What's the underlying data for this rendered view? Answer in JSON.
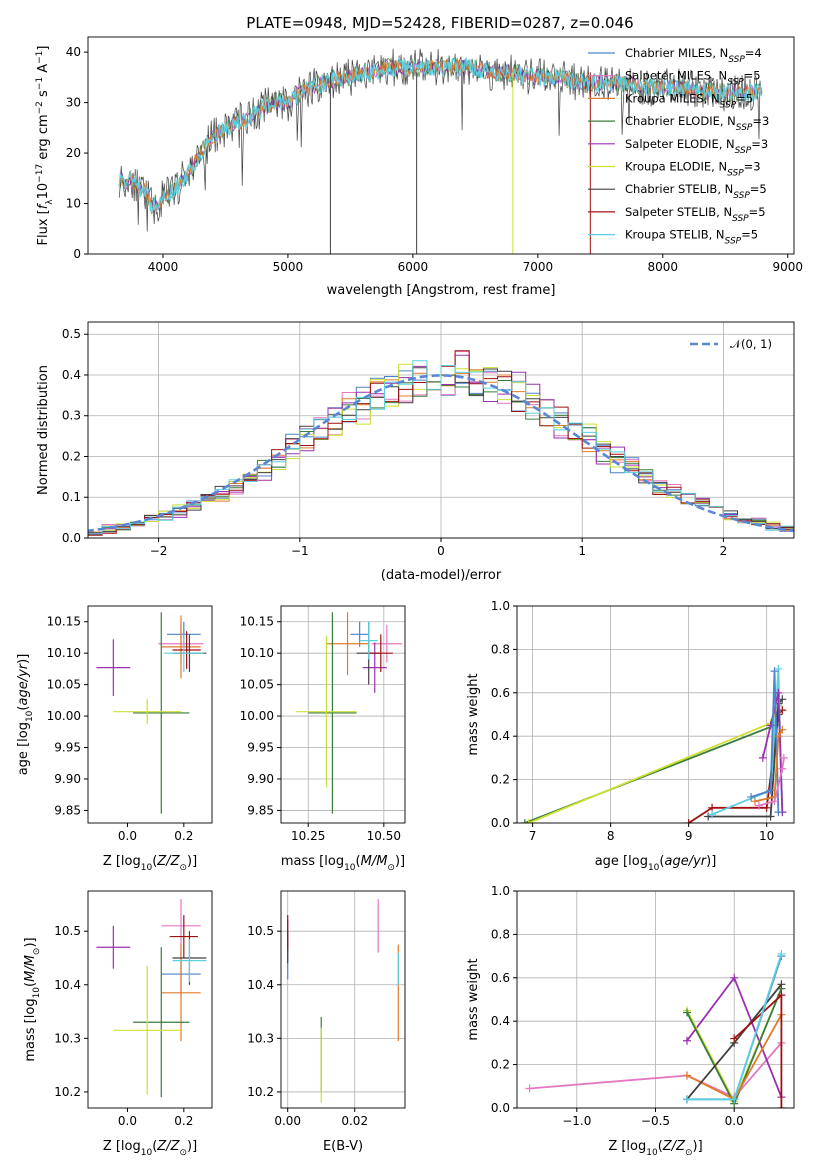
{
  "figure": {
    "title": "PLATE=0948, MJD=52428, FIBERID=0287, z=0.046"
  },
  "colors": {
    "Chabrier MILES": "#4c83c9",
    "Salpeter MILES": "#e377c2",
    "Kroupa MILES": "#e07b2a",
    "Chabrier ELODIE": "#3b7d3b",
    "Salpeter ELODIE": "#9b30b0",
    "Kroupa ELODIE": "#cde033",
    "Chabrier STELIB": "#404040",
    "Salpeter STELIB": "#a01010",
    "Kroupa STELIB": "#5ad0e0"
  },
  "chart_data": [
    {
      "id": "spectrum",
      "type": "line",
      "title": "PLATE=0948, MJD=52428, FIBERID=0287, z=0.046",
      "xlabel": "wavelength [Angstrom, rest frame]",
      "ylabel": "Flux [f_λ10^-17 erg cm^-2 s^-1 A^-1]",
      "xlim": [
        3400,
        9050
      ],
      "ylim": [
        0,
        43
      ],
      "xticks": [
        4000,
        5000,
        6000,
        7000,
        8000,
        9000
      ],
      "yticks": [
        0,
        10,
        20,
        30,
        40
      ],
      "legend": [
        "Chabrier MILES, N_SSP=4",
        "Salpeter MILES, N_SSP=5",
        "Kroupa MILES, N_SSP=5",
        "Chabrier ELODIE, N_SSP=3",
        "Salpeter ELODIE, N_SSP=3",
        "Kroupa ELODIE, N_SSP=3",
        "Chabrier STELIB, N_SSP=5",
        "Salpeter STELIB, N_SSP=5",
        "Kroupa STELIB, N_SSP=5"
      ],
      "legend_placement": "right",
      "grid": false,
      "data_x": [
        3650,
        3700,
        3750,
        3800,
        3850,
        3900,
        3950,
        4000,
        4100,
        4200,
        4300,
        4400,
        4500,
        4600,
        4700,
        4800,
        4900,
        5000,
        5100,
        5200,
        5300,
        5400,
        5500,
        5600,
        5700,
        5800,
        5900,
        6000,
        6100,
        6200,
        6300,
        6400,
        6500,
        6600,
        6700,
        6800,
        6900,
        7000,
        7100,
        7200,
        7300,
        7400,
        7500,
        7600,
        7700,
        7800,
        7900,
        8000,
        8100,
        8200,
        8300,
        8400,
        8500,
        8600,
        8700,
        8800
      ],
      "data_y": [
        15,
        14,
        15,
        13,
        13,
        10,
        9,
        11,
        13,
        16,
        20,
        23,
        25,
        26,
        27,
        29,
        30,
        30,
        32,
        33,
        34,
        35,
        35,
        36,
        36,
        37,
        37,
        37,
        37,
        37,
        37,
        37,
        37,
        36,
        36,
        36,
        35,
        35,
        35,
        35,
        34,
        34,
        34,
        34,
        34,
        33,
        33,
        33,
        33,
        33,
        32,
        32,
        32,
        32,
        32,
        32
      ]
    },
    {
      "id": "residuals",
      "type": "line",
      "xlabel": "(data-model)/error",
      "ylabel": "Normed distribution",
      "xlim": [
        -2.5,
        2.5
      ],
      "ylim": [
        0,
        0.53
      ],
      "xticks": [
        -2,
        -1,
        0,
        1,
        2
      ],
      "yticks": [
        0.0,
        0.1,
        0.2,
        0.3,
        0.4,
        0.5
      ],
      "grid": true,
      "legend": [
        "𝒩(0, 1)"
      ],
      "legend_placement": "top-right",
      "curve": "normal(0,1)"
    },
    {
      "id": "age-vs-Z",
      "type": "scatter",
      "xlabel": "Z [log10(Z/Z⊙)]",
      "ylabel": "age  [log10(age/yr)]",
      "xlim": [
        -0.14,
        0.3
      ],
      "ylim": [
        9.83,
        10.175
      ],
      "xticks": [
        0.0,
        0.2
      ],
      "yticks": [
        9.85,
        9.9,
        9.95,
        10.0,
        10.05,
        10.1,
        10.15
      ],
      "grid": false,
      "points": [
        {
          "series": "Chabrier MILES",
          "x": 0.2,
          "y": 10.13,
          "xerr": 0.06,
          "yerr": 0.02
        },
        {
          "series": "Salpeter MILES",
          "x": 0.19,
          "y": 10.115,
          "xerr": 0.08,
          "yerr": 0.03
        },
        {
          "series": "Kroupa MILES",
          "x": 0.19,
          "y": 10.11,
          "xerr": 0.07,
          "yerr": 0.05
        },
        {
          "series": "Chabrier ELODIE",
          "x": 0.12,
          "y": 10.005,
          "xerr": 0.1,
          "yerr": 0.16
        },
        {
          "series": "Salpeter ELODIE",
          "x": -0.05,
          "y": 10.077,
          "xerr": 0.06,
          "yerr": 0.045
        },
        {
          "series": "Kroupa ELODIE",
          "x": 0.07,
          "y": 10.007,
          "xerr": 0.12,
          "yerr": 0.02
        },
        {
          "series": "Chabrier STELIB",
          "x": 0.22,
          "y": 10.1,
          "xerr": 0.06,
          "yerr": 0.03
        },
        {
          "series": "Salpeter STELIB",
          "x": 0.21,
          "y": 10.105,
          "xerr": 0.05,
          "yerr": 0.03
        },
        {
          "series": "Kroupa STELIB",
          "x": 0.2,
          "y": 10.1,
          "xerr": 0.07,
          "yerr": 0.03
        }
      ]
    },
    {
      "id": "age-vs-mass",
      "type": "scatter",
      "xlabel": "mass [log10(M/M⊙)]",
      "ylabel": "",
      "xlim": [
        10.16,
        10.57
      ],
      "ylim": [
        9.83,
        10.175
      ],
      "xticks": [
        10.25,
        10.5
      ],
      "yticks": [
        9.85,
        9.9,
        9.95,
        10.0,
        10.05,
        10.1,
        10.15
      ],
      "grid": true,
      "points": [
        {
          "series": "Chabrier MILES",
          "x": 10.42,
          "y": 10.13,
          "xerr": 0.03,
          "yerr": 0.02
        },
        {
          "series": "Salpeter MILES",
          "x": 10.51,
          "y": 10.115,
          "xerr": 0.05,
          "yerr": 0.03
        },
        {
          "series": "Kroupa MILES",
          "x": 10.38,
          "y": 10.115,
          "xerr": 0.07,
          "yerr": 0.05
        },
        {
          "series": "Chabrier ELODIE",
          "x": 10.33,
          "y": 10.005,
          "xerr": 0.08,
          "yerr": 0.16
        },
        {
          "series": "Salpeter ELODIE",
          "x": 10.47,
          "y": 10.077,
          "xerr": 0.04,
          "yerr": 0.04
        },
        {
          "series": "Kroupa ELODIE",
          "x": 10.31,
          "y": 10.007,
          "xerr": 0.1,
          "yerr": 0.12
        },
        {
          "series": "Chabrier STELIB",
          "x": 10.45,
          "y": 10.1,
          "xerr": 0.04,
          "yerr": 0.05
        },
        {
          "series": "Salpeter STELIB",
          "x": 10.49,
          "y": 10.1,
          "xerr": 0.04,
          "yerr": 0.03
        },
        {
          "series": "Kroupa STELIB",
          "x": 10.45,
          "y": 10.12,
          "xerr": 0.03,
          "yerr": 0.03
        }
      ]
    },
    {
      "id": "massweight-vs-age",
      "type": "line",
      "xlabel": "age  [log10(age/yr)]",
      "ylabel": "mass weight",
      "xlim": [
        6.8,
        10.35
      ],
      "ylim": [
        0,
        1
      ],
      "xticks": [
        7,
        8,
        9,
        10
      ],
      "yticks": [
        0.0,
        0.2,
        0.4,
        0.6,
        0.8,
        1.0
      ],
      "grid": true,
      "series": [
        {
          "name": "Chabrier ELODIE",
          "x": [
            6.9,
            10.1,
            10.15
          ],
          "y": [
            0.0,
            0.45,
            0.55
          ]
        },
        {
          "name": "Kroupa ELODIE",
          "x": [
            6.95,
            10.05,
            10.15
          ],
          "y": [
            0.0,
            0.46,
            0.54
          ]
        },
        {
          "name": "Salpeter STELIB",
          "x": [
            9.0,
            9.3,
            10.0,
            10.15,
            10.2
          ],
          "y": [
            0.0,
            0.07,
            0.07,
            0.5,
            0.52
          ]
        },
        {
          "name": "Chabrier STELIB",
          "x": [
            9.25,
            10.05,
            10.15,
            10.2
          ],
          "y": [
            0.03,
            0.03,
            0.55,
            0.57
          ]
        },
        {
          "name": "Kroupa STELIB",
          "x": [
            9.3,
            10.05,
            10.15,
            10.2
          ],
          "y": [
            0.04,
            0.15,
            0.71,
            0.05
          ]
        },
        {
          "name": "Salpeter ELODIE",
          "x": [
            9.95,
            10.05,
            10.15,
            10.2
          ],
          "y": [
            0.3,
            0.45,
            0.6,
            0.05
          ]
        },
        {
          "name": "Chabrier MILES",
          "x": [
            9.8,
            10.05,
            10.1,
            10.15
          ],
          "y": [
            0.12,
            0.15,
            0.7,
            0.05
          ]
        },
        {
          "name": "Kroupa MILES",
          "x": [
            9.85,
            10.1,
            10.15,
            10.2
          ],
          "y": [
            0.1,
            0.12,
            0.4,
            0.43
          ]
        },
        {
          "name": "Salpeter MILES",
          "x": [
            9.9,
            10.1,
            10.2,
            10.22
          ],
          "y": [
            0.08,
            0.1,
            0.25,
            0.3
          ]
        }
      ]
    },
    {
      "id": "mass-vs-Z",
      "type": "scatter",
      "xlabel": "Z [log10(Z/Z⊙)]",
      "ylabel": "mass [log10(M/M⊙)]",
      "xlim": [
        -0.14,
        0.3
      ],
      "ylim": [
        10.17,
        10.575
      ],
      "xticks": [
        0.0,
        0.2
      ],
      "yticks": [
        10.2,
        10.3,
        10.4,
        10.5
      ],
      "grid": false,
      "points": [
        {
          "series": "Chabrier MILES",
          "x": 0.19,
          "y": 10.42,
          "xerr": 0.07,
          "yerr": 0.04
        },
        {
          "series": "Salpeter MILES",
          "x": 0.19,
          "y": 10.51,
          "xerr": 0.07,
          "yerr": 0.05
        },
        {
          "series": "Kroupa MILES",
          "x": 0.19,
          "y": 10.385,
          "xerr": 0.07,
          "yerr": 0.09
        },
        {
          "series": "Chabrier ELODIE",
          "x": 0.12,
          "y": 10.33,
          "xerr": 0.1,
          "yerr": 0.14
        },
        {
          "series": "Salpeter ELODIE",
          "x": -0.05,
          "y": 10.47,
          "xerr": 0.06,
          "yerr": 0.04
        },
        {
          "series": "Kroupa ELODIE",
          "x": 0.07,
          "y": 10.315,
          "xerr": 0.12,
          "yerr": 0.12
        },
        {
          "series": "Chabrier STELIB",
          "x": 0.22,
          "y": 10.45,
          "xerr": 0.06,
          "yerr": 0.05
        },
        {
          "series": "Salpeter STELIB",
          "x": 0.2,
          "y": 10.49,
          "xerr": 0.05,
          "yerr": 0.04
        },
        {
          "series": "Kroupa STELIB",
          "x": 0.22,
          "y": 10.445,
          "xerr": 0.06,
          "yerr": 0.04
        }
      ]
    },
    {
      "id": "mass-vs-EBV",
      "type": "scatter",
      "xlabel": "E(B-V)",
      "ylabel": "",
      "xlim": [
        -0.002,
        0.035
      ],
      "ylim": [
        10.17,
        10.575
      ],
      "xticks": [
        0.0,
        0.02
      ],
      "yticks": [
        10.2,
        10.3,
        10.4,
        10.5
      ],
      "grid": true,
      "points": [
        {
          "series": "Chabrier MILES",
          "x": 0.0,
          "y": 10.45,
          "xerr": 0,
          "yerr": 0.04
        },
        {
          "series": "Salpeter MILES",
          "x": 0.027,
          "y": 10.51,
          "xerr": 0,
          "yerr": 0.05
        },
        {
          "series": "Kroupa MILES",
          "x": 0.033,
          "y": 10.385,
          "xerr": 0,
          "yerr": 0.09
        },
        {
          "series": "Chabrier ELODIE",
          "x": 0.01,
          "y": 10.27,
          "xerr": 0,
          "yerr": 0.07
        },
        {
          "series": "Salpeter ELODIE",
          "x": 0.0,
          "y": 10.49,
          "xerr": 0,
          "yerr": 0.03
        },
        {
          "series": "Kroupa ELODIE",
          "x": 0.01,
          "y": 10.25,
          "xerr": 0,
          "yerr": 0.07
        },
        {
          "series": "Chabrier STELIB",
          "x": 0.0,
          "y": 10.47,
          "xerr": 0,
          "yerr": 0.03
        },
        {
          "series": "Salpeter STELIB",
          "x": 0.0,
          "y": 10.5,
          "xerr": 0,
          "yerr": 0.03
        },
        {
          "series": "Kroupa STELIB",
          "x": 0.033,
          "y": 10.43,
          "xerr": 0,
          "yerr": 0.03
        }
      ]
    },
    {
      "id": "massweight-vs-Z",
      "type": "line",
      "xlabel": "Z [log10(Z/Z⊙)]",
      "ylabel": "mass weight",
      "xlim": [
        -1.38,
        0.38
      ],
      "ylim": [
        0,
        1
      ],
      "xticks": [
        -1.0,
        -0.5,
        0.0
      ],
      "yticks": [
        0.0,
        0.2,
        0.4,
        0.6,
        0.8,
        1.0
      ],
      "grid": true,
      "series": [
        {
          "name": "Salpeter MILES",
          "x": [
            -1.3,
            -0.3,
            0.0,
            0.3
          ],
          "y": [
            0.09,
            0.15,
            0.05,
            0.3
          ]
        },
        {
          "name": "Salpeter ELODIE",
          "x": [
            -0.3,
            0.0,
            0.3
          ],
          "y": [
            0.31,
            0.6,
            0.05
          ]
        },
        {
          "name": "Kroupa ELODIE",
          "x": [
            -0.3,
            0.0,
            0.3
          ],
          "y": [
            0.45,
            0.03,
            0.55
          ]
        },
        {
          "name": "Chabrier ELODIE",
          "x": [
            -0.3,
            0.0,
            0.3
          ],
          "y": [
            0.44,
            0.02,
            0.55
          ]
        },
        {
          "name": "Kroupa MILES",
          "x": [
            -0.3,
            0.0,
            0.3
          ],
          "y": [
            0.15,
            0.04,
            0.43
          ]
        },
        {
          "name": "Chabrier STELIB",
          "x": [
            -0.3,
            0.0,
            0.3
          ],
          "y": [
            0.04,
            0.3,
            0.57
          ]
        },
        {
          "name": "Salpeter STELIB",
          "x": [
            0.0,
            0.3,
            0.3
          ],
          "y": [
            0.32,
            0.52,
            0.0
          ]
        },
        {
          "name": "Chabrier MILES",
          "x": [
            -0.3,
            0.0,
            0.3
          ],
          "y": [
            0.04,
            0.04,
            0.7
          ]
        },
        {
          "name": "Kroupa STELIB",
          "x": [
            -0.3,
            0.0,
            0.3
          ],
          "y": [
            0.04,
            0.04,
            0.71
          ]
        }
      ]
    }
  ]
}
